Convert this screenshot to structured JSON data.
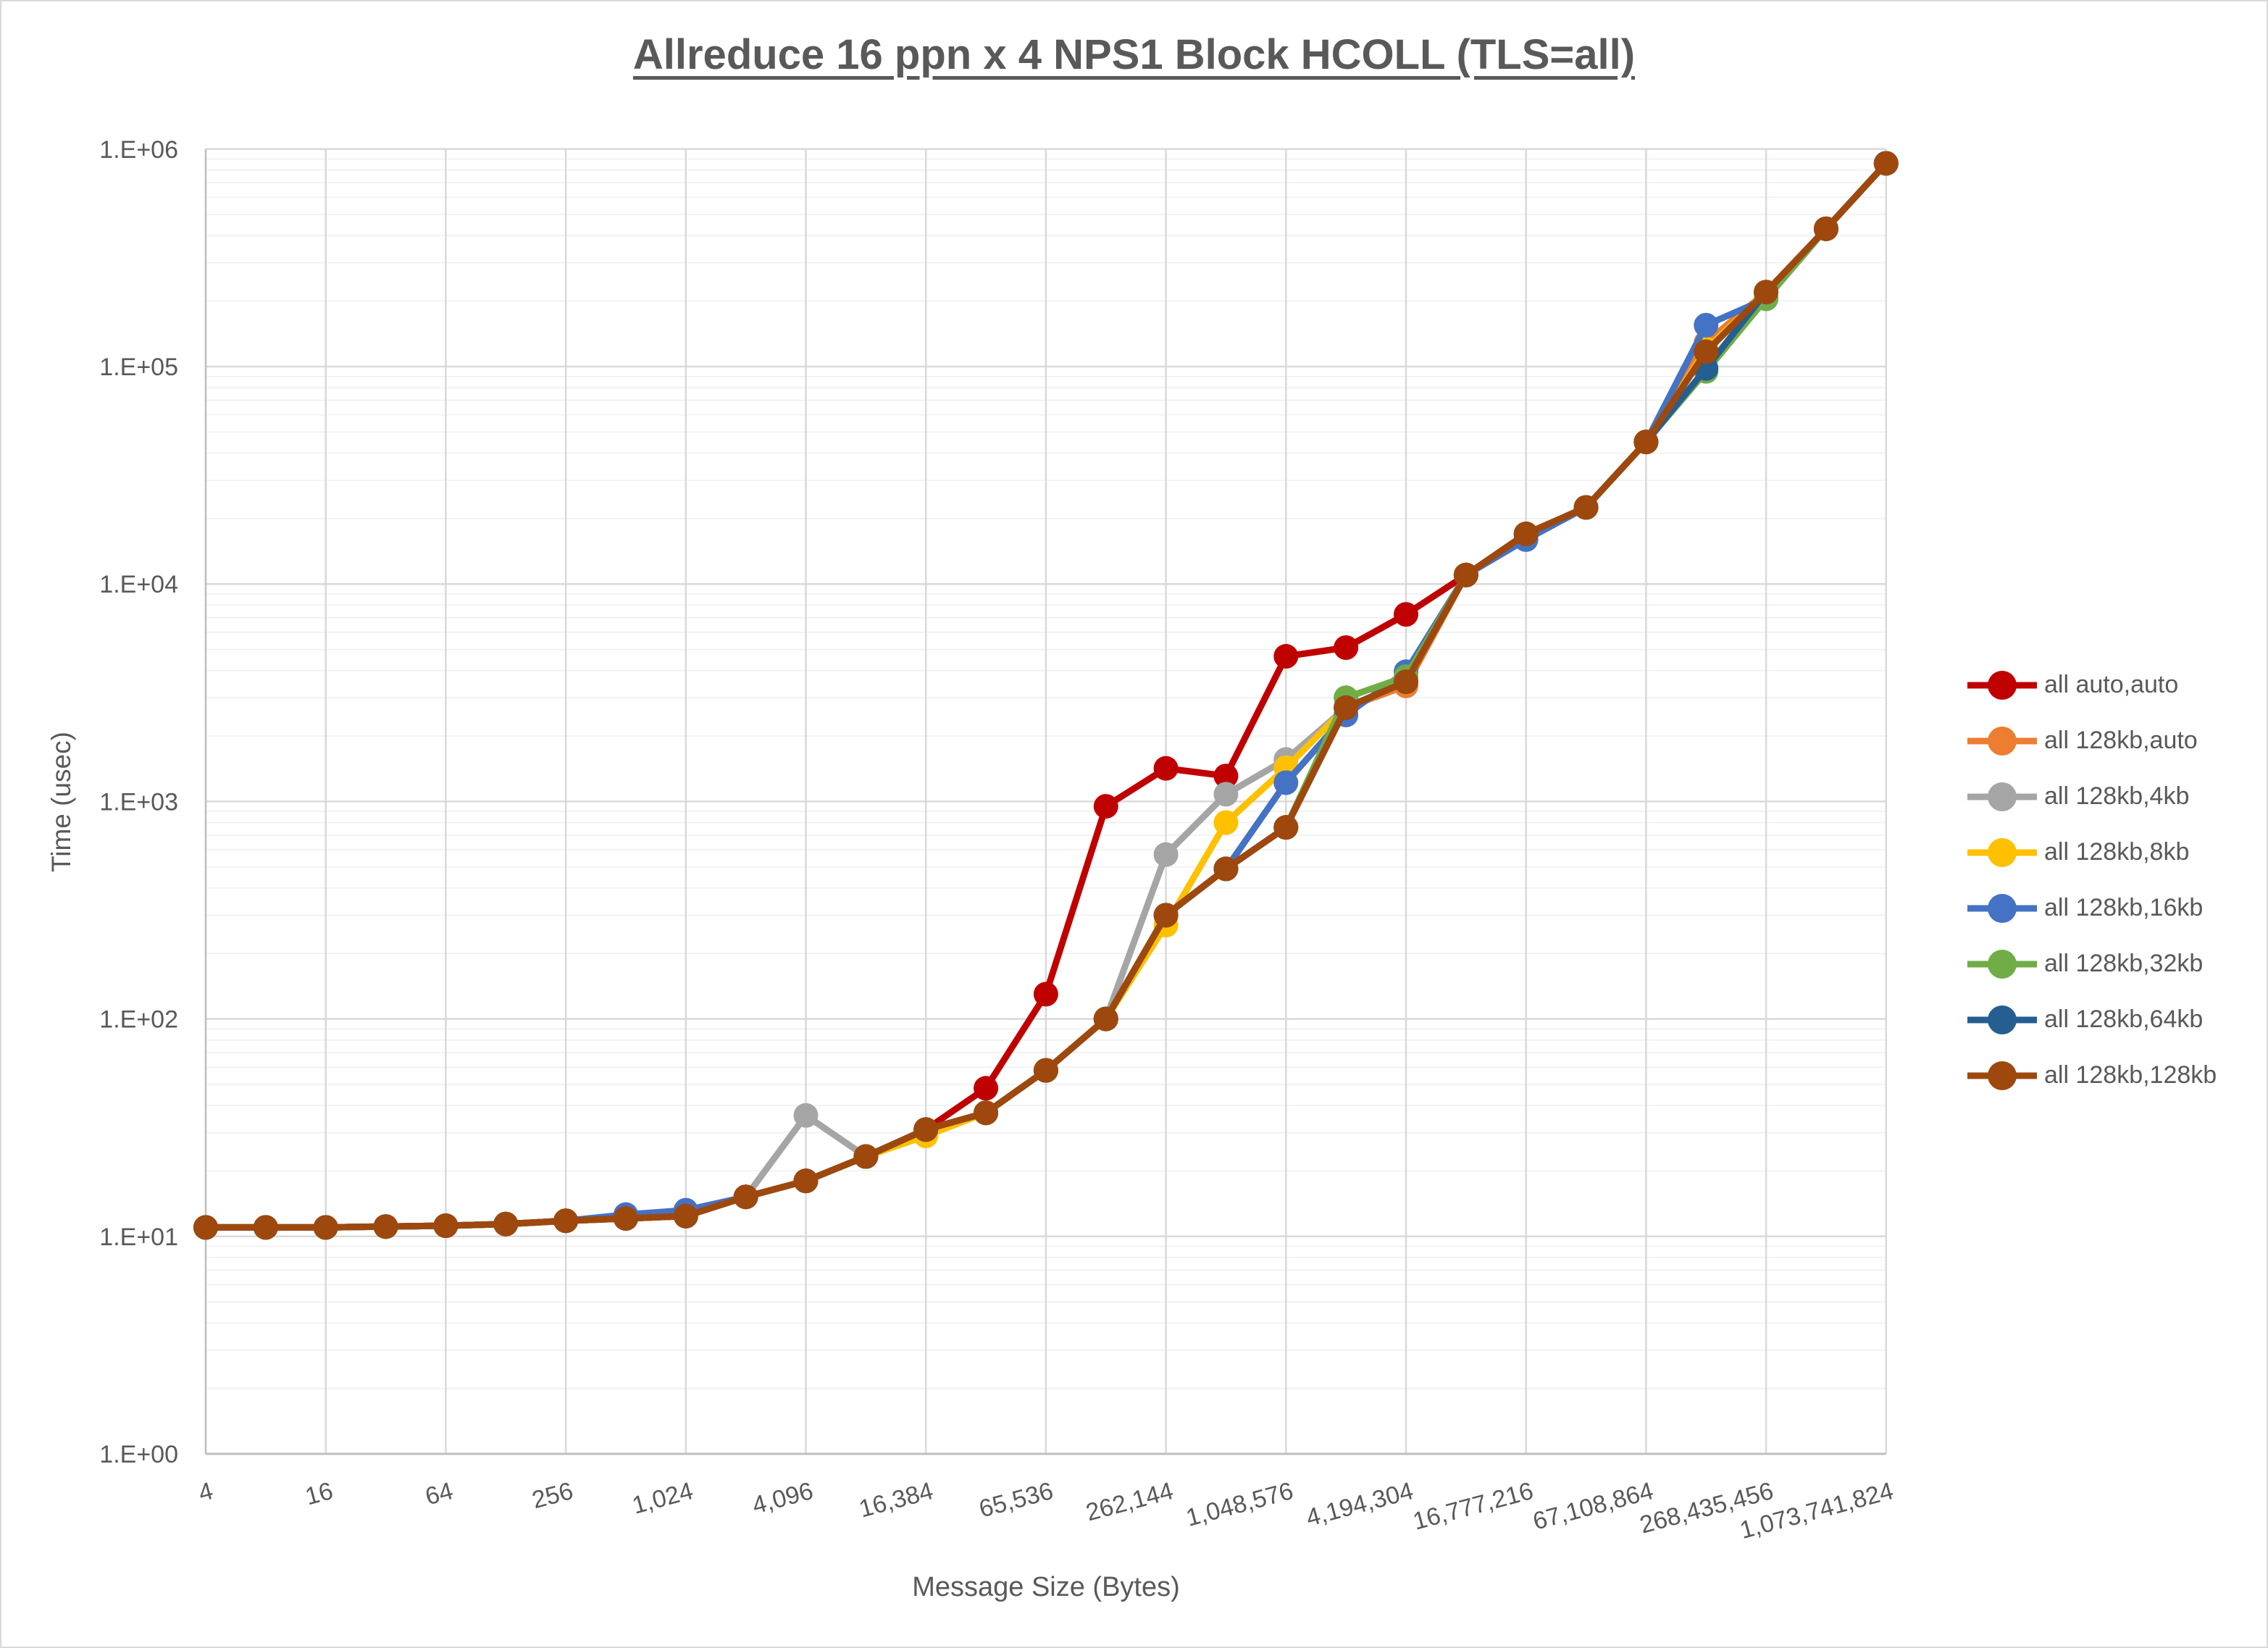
{
  "title": "Allreduce 16 ppn x 4 NPS1 Block HCOLL (TLS=all)",
  "chart_data": {
    "type": "line",
    "title": "Allreduce 16 ppn x 4 NPS1 Block HCOLL (TLS=all)",
    "xlabel": "Message Size (Bytes)",
    "ylabel": "Time (usec)",
    "x_scale": "log2-category",
    "y_scale": "log10",
    "ylim": [
      1,
      1000000
    ],
    "grid": "major-and-minor-log",
    "legend_position": "right",
    "y_tick_labels": [
      "1.E+00",
      "1.E+01",
      "1.E+02",
      "1.E+03",
      "1.E+04",
      "1.E+05",
      "1.E+06"
    ],
    "x": [
      4,
      8,
      16,
      32,
      64,
      128,
      256,
      512,
      1024,
      2048,
      4096,
      8192,
      16384,
      32768,
      65536,
      131072,
      262144,
      524288,
      1048576,
      2097152,
      4194304,
      8388608,
      16777216,
      33554432,
      67108864,
      134217728,
      268435456,
      536870912,
      1073741824
    ],
    "x_tick_labels": [
      "4",
      "16",
      "64",
      "256",
      "1,024",
      "4,096",
      "16,384",
      "65,536",
      "262,144",
      "1,048,576",
      "4,194,304",
      "16,777,216",
      "67,108,864",
      "268,435,456",
      "1,073,741,824"
    ],
    "text_color": "#595959",
    "gridline_color": "#d9d9d9",
    "minor_gridline_color": "#efefef",
    "axis_line_color": "#bfbfbf",
    "series": [
      {
        "name": "all auto,auto",
        "color": "#C00000",
        "values": [
          11,
          11,
          11,
          11.1,
          11.2,
          11.4,
          11.8,
          12.1,
          12.4,
          15.2,
          18,
          23.3,
          31,
          48,
          130,
          950,
          1420,
          1310,
          4650,
          5100,
          7250,
          11000,
          17000,
          22500,
          45000,
          117000,
          220000,
          430000,
          860000
        ]
      },
      {
        "name": "all 128kb,auto",
        "color": "#ED7D31",
        "values": [
          11,
          11,
          11,
          11.1,
          11.2,
          11.4,
          11.8,
          12.1,
          12.4,
          15.2,
          18,
          23.3,
          31,
          37,
          58,
          100,
          300,
          490,
          760,
          2700,
          3400,
          11000,
          17000,
          22500,
          45000,
          129000,
          220000,
          430000,
          860000
        ]
      },
      {
        "name": "all 128kb,4kb",
        "color": "#A5A5A5",
        "values": [
          11,
          11,
          11,
          11.1,
          11.2,
          11.4,
          11.8,
          12.1,
          12.4,
          15.2,
          36,
          23.3,
          29.5,
          37,
          58,
          100,
          570,
          1080,
          1560,
          2700,
          3550,
          11000,
          17000,
          22500,
          45000,
          117000,
          220000,
          430000,
          860000
        ]
      },
      {
        "name": "all 128kb,8kb",
        "color": "#FFC000",
        "values": [
          11,
          11,
          11,
          11.1,
          11.2,
          11.4,
          11.8,
          12.1,
          12.4,
          15.2,
          18,
          23.3,
          29,
          37,
          58,
          100,
          270,
          800,
          1430,
          2700,
          3550,
          11000,
          17000,
          22500,
          45000,
          120000,
          220000,
          430000,
          860000
        ]
      },
      {
        "name": "all 128kb,16kb",
        "color": "#4472C4",
        "values": [
          11,
          11,
          11,
          11.1,
          11.2,
          11.4,
          11.8,
          12.6,
          13.2,
          15.2,
          18,
          23.3,
          31,
          37,
          58,
          100,
          300,
          490,
          1220,
          2500,
          3950,
          11000,
          16000,
          22500,
          45000,
          155000,
          205000,
          430000,
          860000
        ]
      },
      {
        "name": "all 128kb,32kb",
        "color": "#70AD47",
        "values": [
          11,
          11,
          11,
          11.1,
          11.2,
          11.4,
          11.8,
          12.1,
          12.4,
          15.2,
          18,
          23.3,
          31,
          37,
          58,
          100,
          300,
          490,
          760,
          3000,
          3750,
          11000,
          17000,
          22500,
          45000,
          95000,
          205000,
          430000,
          860000
        ]
      },
      {
        "name": "all 128kb,64kb",
        "color": "#255E91",
        "values": [
          11,
          11,
          11,
          11.1,
          11.2,
          11.4,
          11.8,
          12.1,
          12.4,
          15.2,
          18,
          23.3,
          31,
          37,
          58,
          100,
          300,
          490,
          760,
          2700,
          3550,
          11000,
          17000,
          22500,
          45000,
          98000,
          220000,
          430000,
          860000
        ]
      },
      {
        "name": "all 128kb,128kb",
        "color": "#9E480E",
        "values": [
          11,
          11,
          11,
          11.1,
          11.2,
          11.4,
          11.8,
          12.1,
          12.4,
          15.2,
          18,
          23.3,
          31,
          37,
          58,
          100,
          300,
          490,
          760,
          2700,
          3550,
          11000,
          17000,
          22500,
          45000,
          117000,
          220000,
          430000,
          860000
        ]
      }
    ]
  }
}
